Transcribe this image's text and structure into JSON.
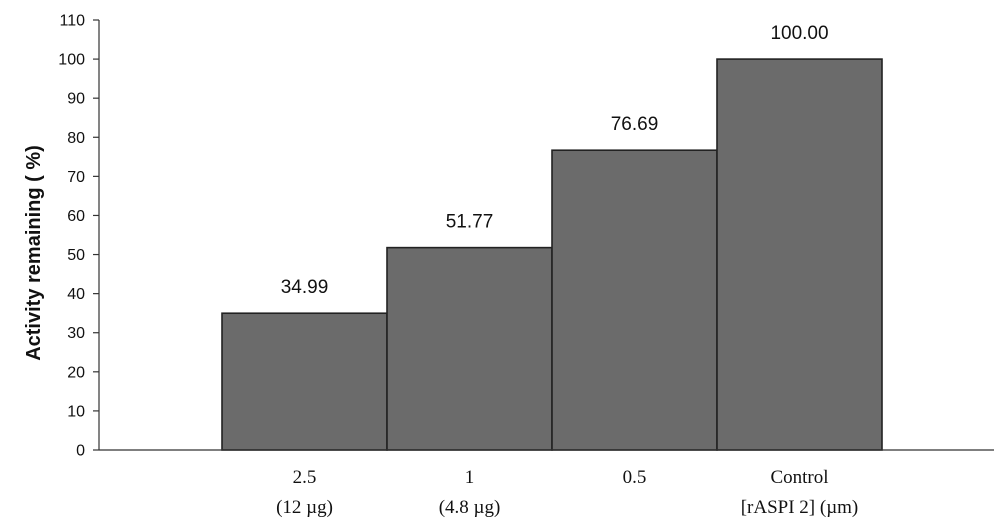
{
  "chart_data": {
    "type": "bar",
    "categories": [
      "2.5",
      "1",
      "0.5",
      "Control"
    ],
    "category_sublabels": [
      "(12 µg)",
      "(4.8 µg)",
      "",
      "[rASPI 2] (µm)"
    ],
    "values": [
      34.99,
      51.77,
      76.69,
      100.0
    ],
    "data_labels": [
      "34.99",
      "51.77",
      "76.69",
      "100.00"
    ],
    "ylabel": "Activity remaining ( %)",
    "xlabel": "",
    "title": "",
    "ylim": [
      0,
      110
    ],
    "yticks": [
      0,
      10,
      20,
      30,
      40,
      50,
      60,
      70,
      80,
      90,
      100,
      110
    ],
    "grid": false,
    "legend": "none",
    "colors": {
      "bar_fill": "#6b6b6b",
      "bar_stroke": "#222222",
      "axis": "#333333"
    }
  }
}
